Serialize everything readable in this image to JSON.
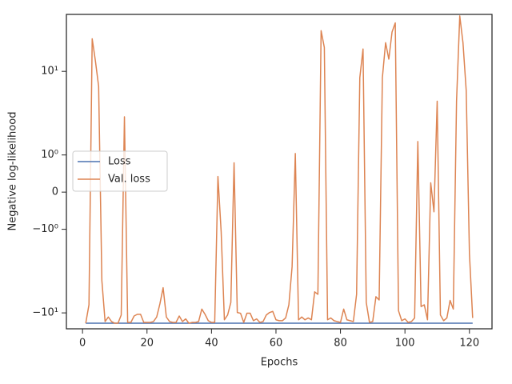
{
  "chart_data": {
    "type": "line",
    "xlabel": "Epochs",
    "ylabel": "Negative log-likelihood",
    "yscale": "symlog",
    "linthresh": 1,
    "linscale": 0.4,
    "xlim": [
      -5,
      127
    ],
    "xticks": [
      0,
      20,
      40,
      60,
      80,
      100,
      120
    ],
    "ylim": [
      -15.5,
      48
    ],
    "yticks": [
      {
        "value": -10,
        "label": "−10¹"
      },
      {
        "value": -1,
        "label": "−10⁰"
      },
      0,
      {
        "value": 1,
        "label": "10⁰"
      },
      {
        "value": 10,
        "label": "10¹"
      }
    ],
    "legend": "center left",
    "x": [
      1,
      2,
      3,
      4,
      5,
      6,
      7,
      8,
      9,
      10,
      11,
      12,
      13,
      14,
      15,
      16,
      17,
      18,
      19,
      20,
      21,
      22,
      23,
      24,
      25,
      26,
      27,
      28,
      29,
      30,
      31,
      32,
      33,
      34,
      35,
      36,
      37,
      38,
      39,
      40,
      41,
      42,
      43,
      44,
      45,
      46,
      47,
      48,
      49,
      50,
      51,
      52,
      53,
      54,
      55,
      56,
      57,
      58,
      59,
      60,
      61,
      62,
      63,
      64,
      65,
      66,
      67,
      68,
      69,
      70,
      71,
      72,
      73,
      74,
      75,
      76,
      77,
      78,
      79,
      80,
      81,
      82,
      83,
      84,
      85,
      86,
      87,
      88,
      89,
      90,
      91,
      92,
      93,
      94,
      95,
      96,
      97,
      98,
      99,
      100,
      101,
      102,
      103,
      104,
      105,
      106,
      107,
      108,
      109,
      110,
      111,
      112,
      113,
      114,
      115,
      116,
      117,
      118,
      119,
      120,
      121
    ],
    "series": [
      {
        "name": "Loss",
        "color": "#4c72b0",
        "values": [
          -13.3,
          -13.3,
          -13.3,
          -13.3,
          -13.3,
          -13.3,
          -13.3,
          -13.3,
          -13.3,
          -13.3,
          -13.3,
          -13.3,
          -13.3,
          -13.3,
          -13.3,
          -13.3,
          -13.3,
          -13.3,
          -13.3,
          -13.3,
          -13.3,
          -13.3,
          -13.3,
          -13.3,
          -13.3,
          -13.3,
          -13.3,
          -13.3,
          -13.3,
          -13.3,
          -13.3,
          -13.3,
          -13.3,
          -13.3,
          -13.3,
          -13.3,
          -13.3,
          -13.3,
          -13.3,
          -13.3,
          -13.3,
          -13.3,
          -13.3,
          -13.3,
          -13.3,
          -13.3,
          -13.3,
          -13.3,
          -13.3,
          -13.3,
          -13.3,
          -13.3,
          -13.3,
          -13.3,
          -13.3,
          -13.3,
          -13.3,
          -13.3,
          -13.3,
          -13.3,
          -13.3,
          -13.3,
          -13.3,
          -13.3,
          -13.3,
          -13.3,
          -13.3,
          -13.3,
          -13.3,
          -13.3,
          -13.3,
          -13.3,
          -13.3,
          -13.3,
          -13.3,
          -13.3,
          -13.3,
          -13.3,
          -13.3,
          -13.3,
          -13.3,
          -13.3,
          -13.3,
          -13.3,
          -13.3,
          -13.3,
          -13.3,
          -13.3,
          -13.3,
          -13.3,
          -13.3,
          -13.3,
          -13.3,
          -13.3,
          -13.3,
          -13.3,
          -13.3,
          -13.3,
          -13.3,
          -13.3,
          -13.3,
          -13.3,
          -13.3,
          -13.3,
          -13.3,
          -13.3,
          -13.3,
          -13.3,
          -13.3,
          -13.3,
          -13.3,
          -13.3,
          -13.3,
          -13.3,
          -13.3,
          -13.3,
          -13.3,
          -13.3,
          -13.3,
          -13.3,
          -13.3
        ]
      },
      {
        "name": "Val. loss",
        "color": "#dd8452",
        "values": [
          -13.3,
          -8.0,
          24.5,
          13.3,
          6.6,
          -4.1,
          -12.7,
          -11.2,
          -12.7,
          -13.3,
          -13.3,
          -10.6,
          2.86,
          -13.0,
          -13.0,
          -10.9,
          -10.4,
          -10.4,
          -13.0,
          -13.0,
          -13.0,
          -12.7,
          -11.2,
          -7.8,
          -5.0,
          -11.2,
          -12.7,
          -13.0,
          -13.0,
          -10.9,
          -12.7,
          -11.8,
          -13.3,
          -13.0,
          -13.0,
          -12.7,
          -9.0,
          -10.4,
          -12.4,
          -13.0,
          -13.0,
          0.42,
          -1.07,
          -12.1,
          -10.6,
          -7.5,
          0.79,
          -9.9,
          -10.1,
          -13.0,
          -10.1,
          -10.1,
          -12.4,
          -11.8,
          -13.0,
          -12.7,
          -10.6,
          -9.9,
          -9.6,
          -12.1,
          -12.4,
          -12.4,
          -11.5,
          -8.0,
          -2.8,
          1.04,
          -12.1,
          -11.2,
          -12.1,
          -11.5,
          -12.1,
          -5.6,
          -6.0,
          30.6,
          19.3,
          -12.1,
          -11.5,
          -12.4,
          -12.7,
          -13.0,
          -9.0,
          -12.1,
          -12.4,
          -12.7,
          -6.0,
          8.4,
          18.5,
          -7.5,
          -13.0,
          -12.7,
          -6.4,
          -7.0,
          8.4,
          22,
          14,
          29.6,
          38,
          -9.4,
          -12.4,
          -11.8,
          -13.0,
          -12.7,
          -11.5,
          1.45,
          -8.4,
          -8.0,
          -12.1,
          0.25,
          -0.53,
          4.4,
          -10.6,
          -12.4,
          -11.5,
          -7.1,
          -9.0,
          4.4,
          46,
          22,
          5.9,
          -1.95,
          -11.5
        ]
      }
    ]
  }
}
